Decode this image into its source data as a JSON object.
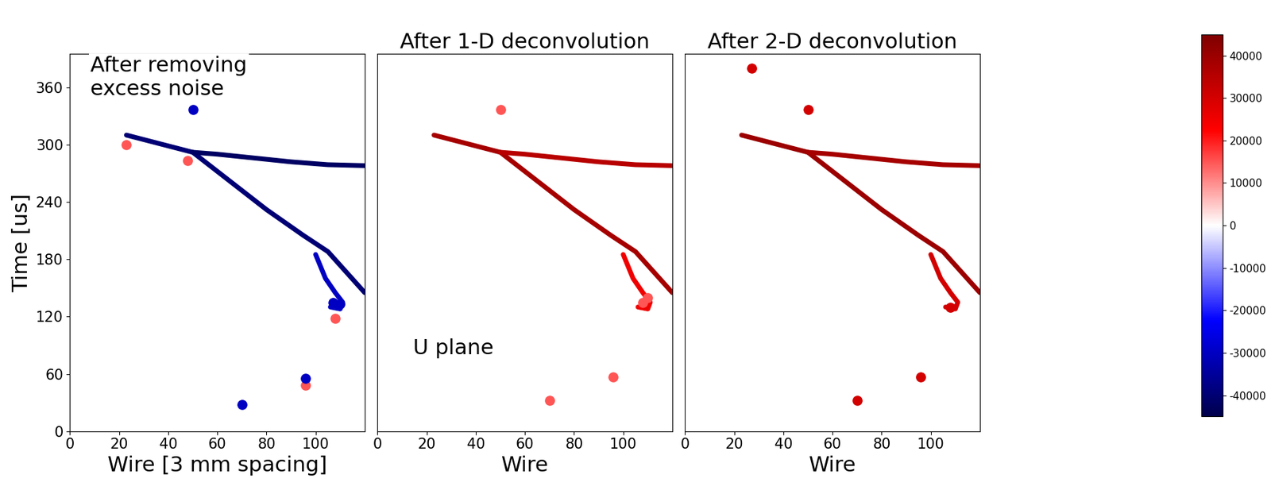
{
  "chart_data": [
    {
      "type": "line",
      "title": "After removing\nexcess noise",
      "xlabel": "Wire [3 mm spacing]",
      "ylabel": "Time [us]",
      "xlim": [
        0,
        120
      ],
      "ylim": [
        0,
        395
      ],
      "xticks": [
        0,
        20,
        40,
        60,
        80,
        100
      ],
      "yticks": [
        0,
        60,
        120,
        180,
        240,
        300,
        360
      ],
      "tick_labels": true,
      "series": [
        {
          "type": "line",
          "x": [
            23,
            35,
            50,
            65,
            80,
            95,
            105,
            120
          ],
          "values": [
            310,
            302,
            292,
            262,
            232,
            205,
            188,
            145
          ],
          "charge": -40000
        },
        {
          "type": "line",
          "x": [
            50,
            60,
            75,
            90,
            105,
            120
          ],
          "values": [
            292,
            290,
            286,
            282,
            279,
            278
          ],
          "charge": -42000
        },
        {
          "type": "line",
          "x": [
            100,
            104,
            108,
            111,
            110,
            106
          ],
          "values": [
            185,
            160,
            145,
            135,
            128,
            130
          ],
          "charge": -30000
        },
        {
          "type": "scatter",
          "marker": "o",
          "x": [
            23,
            48,
            108,
            96
          ],
          "values": [
            300,
            283,
            118,
            48
          ],
          "charge": 15000
        },
        {
          "type": "scatter",
          "marker": "o",
          "x": [
            50,
            70,
            96,
            107,
            110
          ],
          "values": [
            337,
            28,
            55,
            135,
            133
          ],
          "charge": -30000
        }
      ]
    },
    {
      "type": "line",
      "title": "After 1-D deconvolution",
      "xlabel": "Wire",
      "xlim": [
        0,
        120
      ],
      "ylim": [
        0,
        395
      ],
      "xticks": [
        0,
        20,
        40,
        60,
        80,
        100
      ],
      "tick_labels": "x",
      "annotations": [
        "U plane"
      ],
      "series": [
        {
          "type": "line",
          "x": [
            23,
            35,
            50,
            65,
            80,
            95,
            105,
            120
          ],
          "values": [
            310,
            302,
            292,
            262,
            232,
            205,
            188,
            145
          ],
          "charge": 38000
        },
        {
          "type": "line",
          "x": [
            50,
            60,
            75,
            90,
            105,
            120
          ],
          "values": [
            292,
            290,
            286,
            282,
            279,
            278
          ],
          "charge": 35000
        },
        {
          "type": "line",
          "x": [
            100,
            104,
            108,
            111,
            110,
            106
          ],
          "values": [
            185,
            160,
            145,
            135,
            128,
            130
          ],
          "charge": 25000
        },
        {
          "type": "scatter",
          "marker": "o",
          "x": [
            50,
            70,
            96,
            108,
            110
          ],
          "values": [
            337,
            32,
            57,
            135,
            140
          ],
          "charge": 15000
        }
      ]
    },
    {
      "type": "line",
      "title": "After 2-D deconvolution",
      "xlabel": "Wire",
      "xlim": [
        0,
        120
      ],
      "ylim": [
        0,
        395
      ],
      "xticks": [
        0,
        20,
        40,
        60,
        80,
        100
      ],
      "tick_labels": "x",
      "series": [
        {
          "type": "line",
          "x": [
            23,
            35,
            50,
            65,
            80,
            95,
            105,
            120
          ],
          "values": [
            310,
            302,
            292,
            262,
            232,
            205,
            188,
            145
          ],
          "charge": 40000
        },
        {
          "type": "line",
          "x": [
            50,
            60,
            75,
            90,
            105,
            120
          ],
          "values": [
            292,
            290,
            286,
            282,
            279,
            278
          ],
          "charge": 38000
        },
        {
          "type": "line",
          "x": [
            100,
            104,
            108,
            111,
            110,
            106
          ],
          "values": [
            185,
            160,
            145,
            135,
            128,
            130
          ],
          "charge": 30000
        },
        {
          "type": "scatter",
          "marker": "o",
          "x": [
            27,
            50,
            70,
            96,
            108
          ],
          "values": [
            380,
            337,
            32,
            57,
            130
          ],
          "charge": 30000
        }
      ]
    }
  ],
  "colorbar": {
    "range": [
      -45000,
      45000
    ],
    "ticks": [
      -40000,
      -30000,
      -20000,
      -10000,
      0,
      10000,
      20000,
      30000,
      40000
    ]
  }
}
